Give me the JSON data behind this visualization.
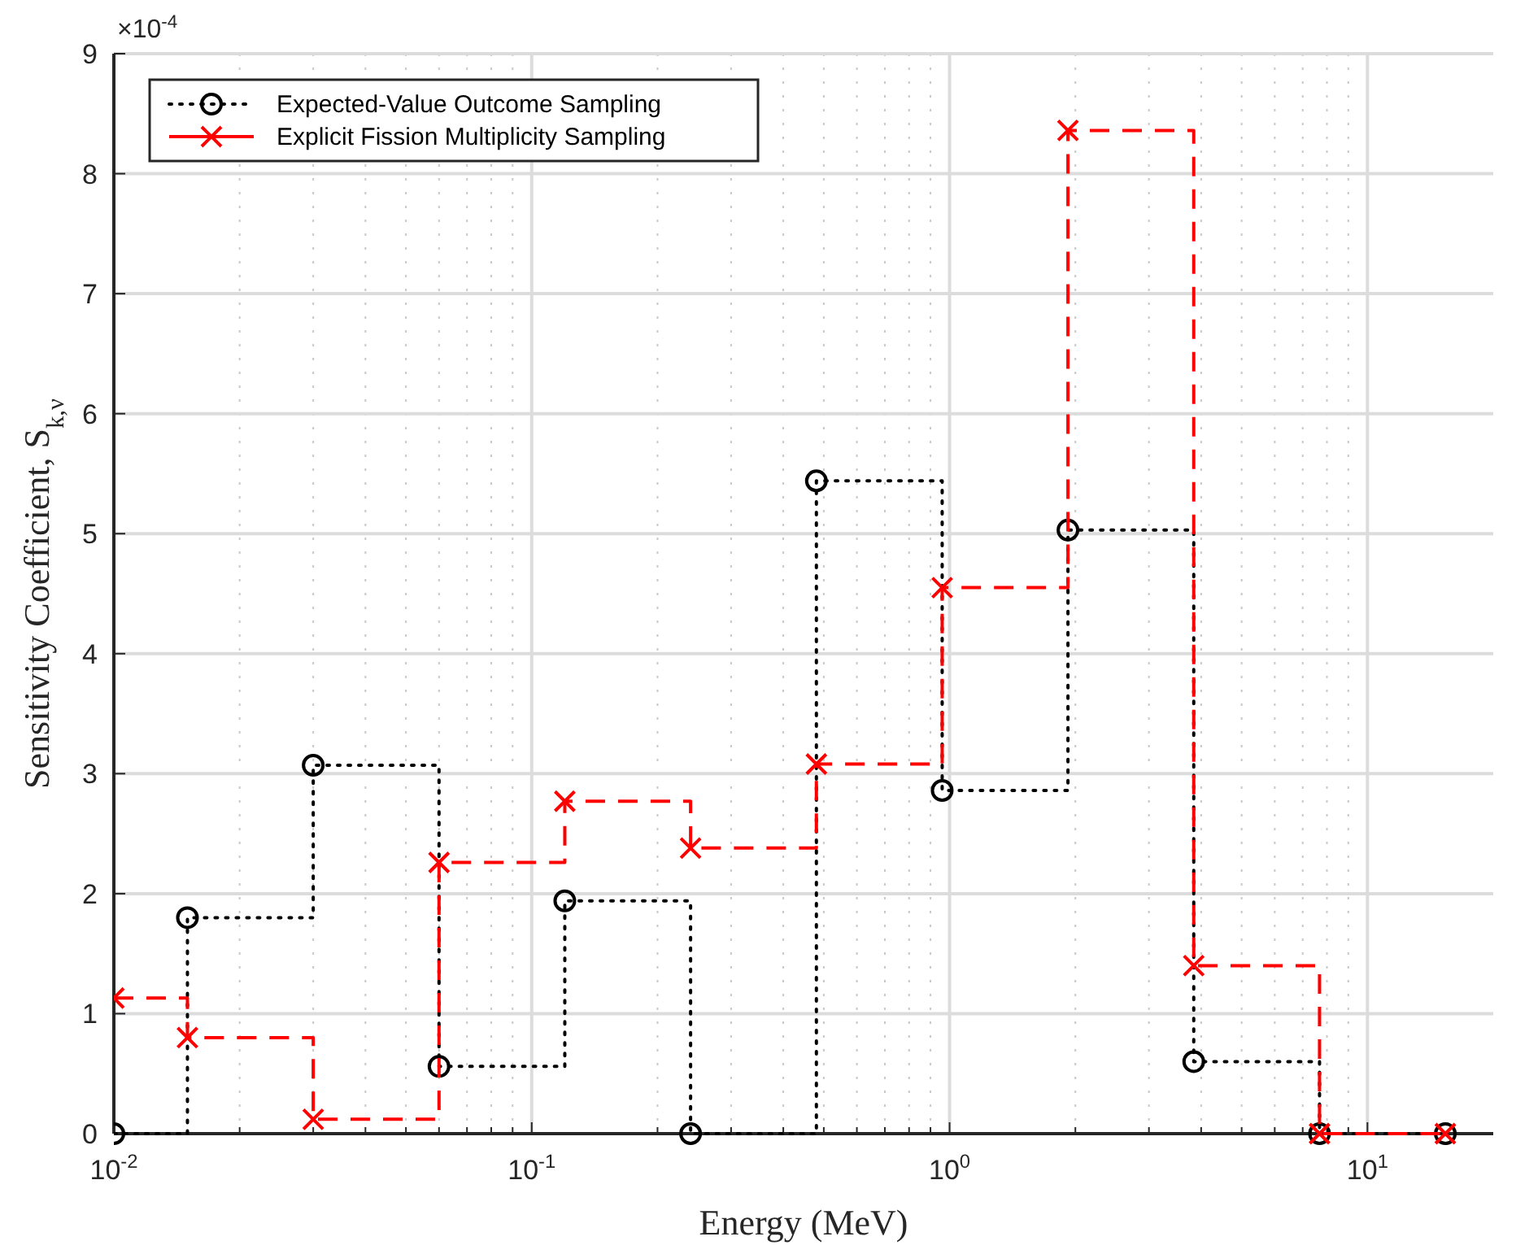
{
  "chart_data": {
    "type": "step",
    "xlabel": "Energy (MeV)",
    "ylabel": "Sensitivity Coefficient, S$_{k,ν}$",
    "annotations": [
      "×10$^{-4}$"
    ],
    "x": [
      0.01,
      0.015,
      0.03,
      0.06,
      0.12,
      0.24,
      0.48,
      0.96,
      1.92,
      3.84,
      7.68,
      15.36
    ],
    "series": [
      {
        "name": "Expected-Value Outcome Sampling",
        "color": "#000000",
        "marker": "circle",
        "line_style": "dotted",
        "values": [
          0,
          1.8,
          3.07,
          0.56,
          1.94,
          0,
          5.44,
          2.86,
          5.03,
          0.6,
          0,
          0
        ]
      },
      {
        "name": "Explicit Fission Multiplicity Sampling",
        "color": "#ff0000",
        "marker": "cross",
        "line_style": "dashed",
        "values": [
          1.13,
          0.8,
          0.12,
          2.26,
          2.77,
          2.38,
          3.08,
          4.55,
          8.36,
          1.4,
          0,
          0
        ]
      }
    ],
    "log": "x",
    "xlim": [
      0.01,
      20
    ],
    "ylim": [
      0,
      9
    ],
    "yticks": [
      0,
      1,
      2,
      3,
      4,
      5,
      6,
      7,
      8,
      9
    ],
    "xticks": [
      {
        "value": 0.01,
        "label": "10$^{-2}$"
      },
      {
        "value": 0.02,
        "label": null
      },
      {
        "value": 0.03,
        "label": null
      },
      {
        "value": 0.04,
        "label": null
      },
      {
        "value": 0.05,
        "label": null
      },
      {
        "value": 0.06,
        "label": null
      },
      {
        "value": 0.07,
        "label": null
      },
      {
        "value": 0.08,
        "label": null
      },
      {
        "value": 0.09,
        "label": null
      },
      {
        "value": 0.1,
        "label": "10$^{-1}$"
      },
      {
        "value": 0.2,
        "label": null
      },
      {
        "value": 0.3,
        "label": null
      },
      {
        "value": 0.4,
        "label": null
      },
      {
        "value": 0.5,
        "label": null
      },
      {
        "value": 0.6,
        "label": null
      },
      {
        "value": 0.7,
        "label": null
      },
      {
        "value": 0.8,
        "label": null
      },
      {
        "value": 0.9,
        "label": null
      },
      {
        "value": 1,
        "label": "10$^{0}$"
      },
      {
        "value": 2,
        "label": null
      },
      {
        "value": 3,
        "label": null
      },
      {
        "value": 4,
        "label": null
      },
      {
        "value": 5,
        "label": null
      },
      {
        "value": 6,
        "label": null
      },
      {
        "value": 7,
        "label": null
      },
      {
        "value": 8,
        "label": null
      },
      {
        "value": 9,
        "label": null
      },
      {
        "value": 10,
        "label": "10$^{1}$"
      }
    ],
    "grid": true,
    "legend": "top left"
  }
}
